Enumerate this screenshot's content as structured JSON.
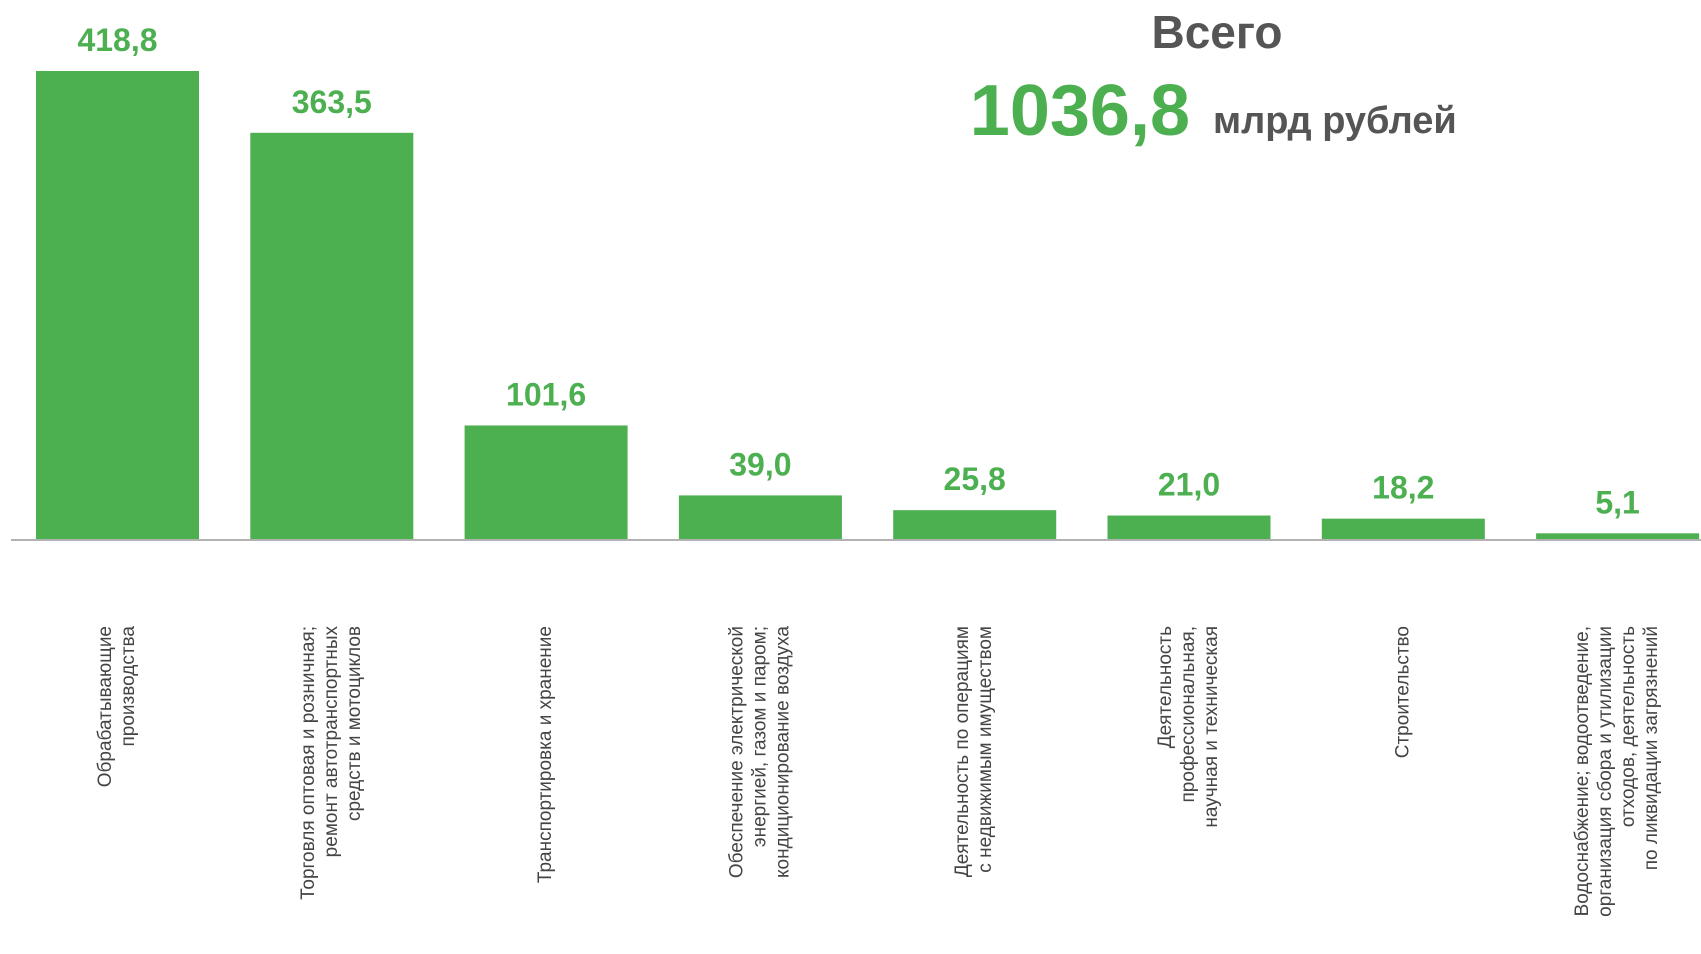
{
  "chart_data": {
    "type": "bar",
    "total_title": "Всего",
    "total_value": "1036,8",
    "total_unit": "млрд рублей",
    "categories": [
      "Обрабатывающие\nпроизводства",
      "Торговля оптовая и розничная;\nремонт автотранспортных\nсредств и мотоциклов",
      "Транспортировка и хранение",
      "Обеспечение электрической\nэнергией, газом и паром;\nкондиционирование воздуха",
      "Деятельность по операциям\nс недвижимым имуществом",
      "Деятельность\nпрофессиональная,\nнаучная и техническая",
      "Строительство",
      "Водоснабжение; водоотведение,\nорганизация сбора и утилизации\nотходов, деятельность\nпо ликвидации загрязнений"
    ],
    "values": [
      418.8,
      363.5,
      101.6,
      39.0,
      25.8,
      21.0,
      18.2,
      5.1
    ],
    "value_labels": [
      "418,8",
      "363,5",
      "101,6",
      "39,0",
      "25,8",
      "21,0",
      "18,2",
      "5,1"
    ],
    "color": "#4caf50"
  }
}
